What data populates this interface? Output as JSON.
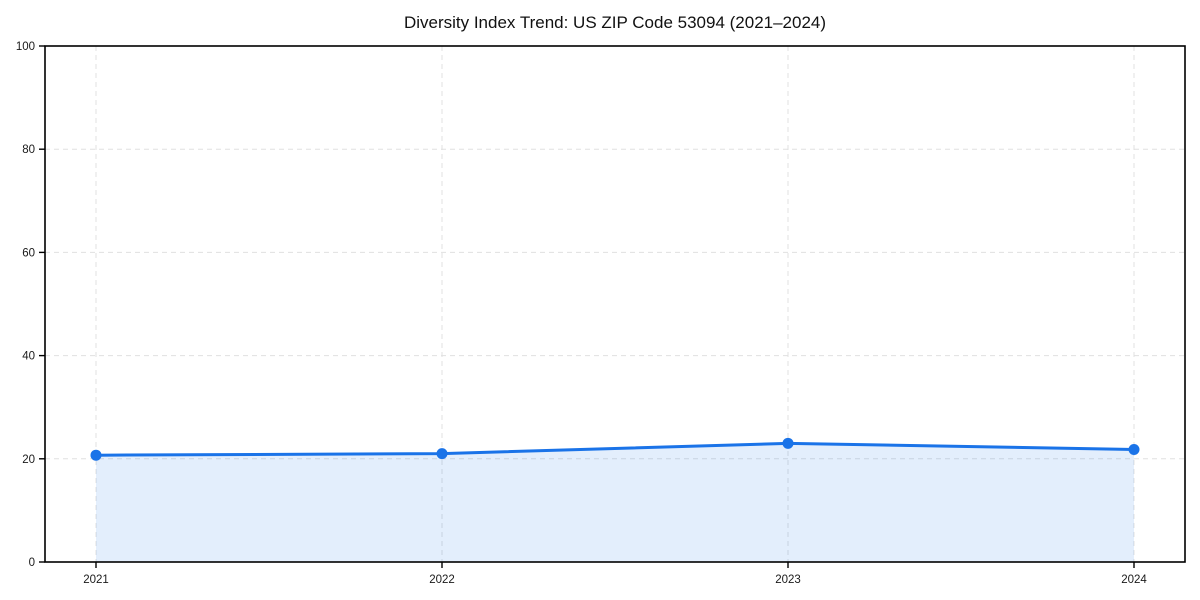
{
  "chart_data": {
    "type": "area",
    "title": "Diversity Index Trend: US ZIP Code 53094 (2021–2024)",
    "x": [
      2021,
      2022,
      2023,
      2024
    ],
    "series": [
      {
        "name": "Diversity Index",
        "values": [
          20.7,
          21.0,
          23.0,
          21.8
        ]
      }
    ],
    "xlabel": "",
    "ylabel": "",
    "ylim": [
      0,
      100
    ],
    "yticks": [
      0,
      20,
      40,
      60,
      80,
      100
    ],
    "x_tick_labels": [
      "2021",
      "2022",
      "2023",
      "2024"
    ],
    "y_tick_labels": [
      "0",
      "20",
      "40",
      "60",
      "80",
      "100"
    ],
    "grid": true,
    "grid_style": "dashed",
    "legend": false,
    "colors": {
      "line": "#1a73e8",
      "marker": "#1a73e8",
      "fill": "rgba(26,115,232,0.12)",
      "grid": "#e0e0e0",
      "spine": "#000000",
      "tick_label": "#1a1a1a",
      "background": "#ffffff"
    }
  }
}
